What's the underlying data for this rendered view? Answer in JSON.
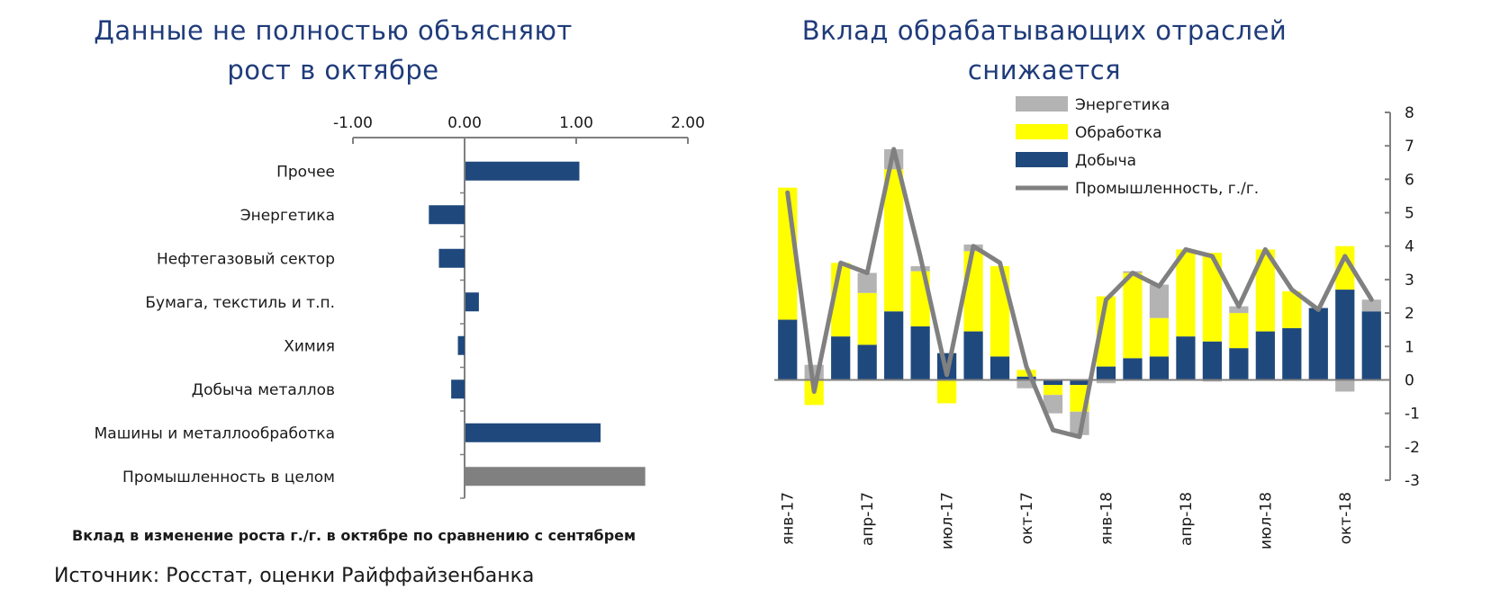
{
  "chart_data": [
    {
      "type": "bar",
      "orientation": "horizontal",
      "title": "Данные не полностью объясняют рост в октябре",
      "title_lines": [
        "Данные не полностью объясняют",
        "рост в октябре"
      ],
      "subtitle": "Вклад в изменение роста г./г. в октябре по сравнению с сентябрем",
      "axis_position": "top",
      "xlim": [
        -1,
        2
      ],
      "xticks": [
        "-1.00",
        "0.00",
        "1.00",
        "2.00"
      ],
      "xtick_values": [
        -1,
        0,
        1,
        2
      ],
      "categories": [
        "Прочее",
        "Энергетика",
        "Нефтегазовый сектор",
        "Бумага, текстиль и т.п.",
        "Химия",
        "Добыча металлов",
        "Машины и металлообработка",
        "Промышленность в целом"
      ],
      "values": [
        1.02,
        -0.32,
        -0.23,
        0.12,
        -0.06,
        -0.12,
        1.21,
        1.61
      ],
      "colors": [
        "#1f497d",
        "#1f497d",
        "#1f497d",
        "#1f497d",
        "#1f497d",
        "#1f497d",
        "#1f497d",
        "#808080"
      ]
    },
    {
      "type": "bar",
      "stacked": true,
      "title": "Вклад обрабатывающих отраслей снижается",
      "title_lines": [
        "Вклад обрабатывающих отраслей",
        "снижается"
      ],
      "y_axis_position": "right",
      "ylim": [
        -3,
        8
      ],
      "yticks": [
        8,
        7,
        6,
        5,
        4,
        3,
        2,
        1,
        0,
        -1,
        -2,
        -3
      ],
      "x_tick_labels": [
        {
          "index": 0,
          "label": "янв-17"
        },
        {
          "index": 3,
          "label": "апр-17"
        },
        {
          "index": 6,
          "label": "июл-17"
        },
        {
          "index": 9,
          "label": "окт-17"
        },
        {
          "index": 12,
          "label": "янв-18"
        },
        {
          "index": 15,
          "label": "апр-18"
        },
        {
          "index": 18,
          "label": "июл-18"
        },
        {
          "index": 21,
          "label": "окт-18"
        }
      ],
      "legend_position": "top-right",
      "series": [
        {
          "name": "Добыча",
          "type": "bar",
          "color": "#1f497d",
          "values": [
            1.8,
            0.0,
            1.3,
            1.05,
            2.05,
            1.6,
            0.8,
            1.45,
            0.7,
            0.1,
            -0.15,
            -0.15,
            0.4,
            0.65,
            0.7,
            1.3,
            1.15,
            0.95,
            1.45,
            1.55,
            2.15,
            2.7,
            2.05
          ]
        },
        {
          "name": "Обработка",
          "type": "bar",
          "color": "#ffff00",
          "values": [
            3.95,
            -0.75,
            2.2,
            1.55,
            4.25,
            1.65,
            -0.7,
            2.4,
            2.7,
            0.2,
            -0.3,
            -0.8,
            2.1,
            2.55,
            1.15,
            2.6,
            2.65,
            1.05,
            2.45,
            1.1,
            0.0,
            1.3,
            0.0
          ]
        },
        {
          "name": "Энергетика",
          "type": "bar",
          "color": "#b3b3b3",
          "values": [
            0.0,
            0.45,
            0.0,
            0.6,
            0.6,
            0.15,
            0.0,
            0.2,
            0.0,
            -0.25,
            -0.55,
            -0.7,
            -0.1,
            0.05,
            1.0,
            0.0,
            -0.05,
            0.2,
            0.0,
            0.0,
            0.0,
            -0.35,
            0.35
          ]
        },
        {
          "name": "Промышленность, г./г.",
          "type": "line",
          "color": "#808080",
          "values": [
            5.6,
            -0.35,
            3.5,
            3.2,
            6.9,
            3.7,
            0.15,
            4.0,
            3.5,
            0.4,
            -1.5,
            -1.7,
            2.4,
            3.2,
            2.8,
            3.9,
            3.7,
            2.2,
            3.9,
            2.7,
            2.1,
            3.7,
            2.4
          ]
        }
      ]
    }
  ],
  "source": "Источник: Росстат, оценки Райффайзенбанка"
}
